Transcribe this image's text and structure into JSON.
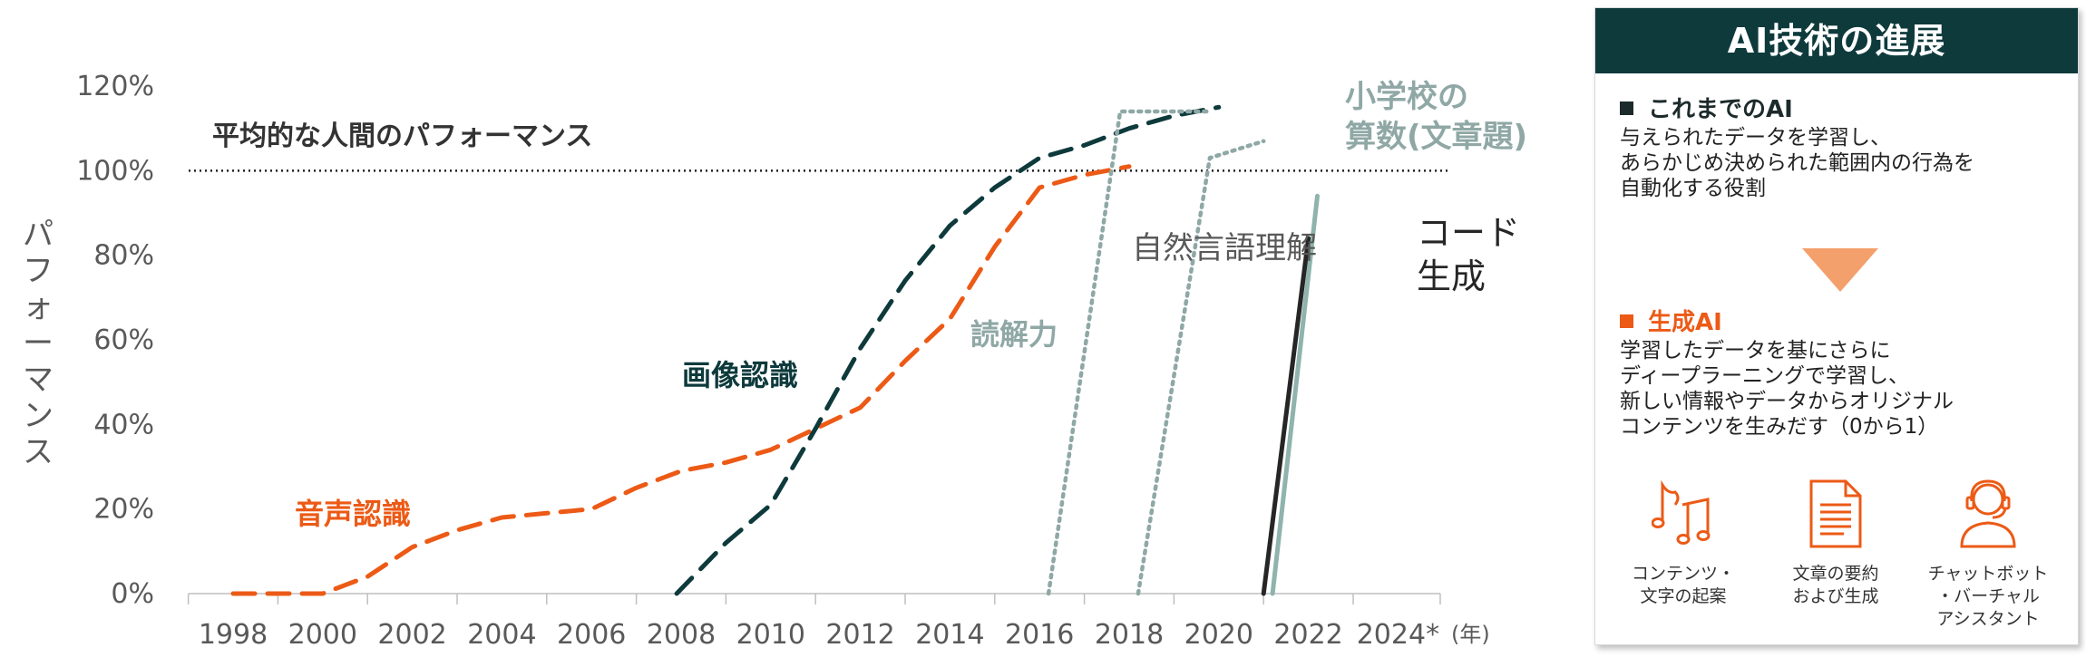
{
  "chart_data": {
    "type": "line",
    "x_axis_unit": "(年)",
    "y_axis_label": "パフォーマンス",
    "ylim": [
      0,
      120
    ],
    "xlim": [
      1997.5,
      2024
    ],
    "y_ticks": [
      {
        "value": 0,
        "label": "0%"
      },
      {
        "value": 20,
        "label": "20%"
      },
      {
        "value": 40,
        "label": "40%"
      },
      {
        "value": 60,
        "label": "60%"
      },
      {
        "value": 80,
        "label": "80%"
      },
      {
        "value": 100,
        "label": "100%"
      },
      {
        "value": 120,
        "label": "120%"
      }
    ],
    "x_ticks": [
      {
        "value": 1998,
        "label": "1998"
      },
      {
        "value": 2000,
        "label": "2000"
      },
      {
        "value": 2002,
        "label": "2002"
      },
      {
        "value": 2004,
        "label": "2004"
      },
      {
        "value": 2006,
        "label": "2006"
      },
      {
        "value": 2008,
        "label": "2008"
      },
      {
        "value": 2010,
        "label": "2010"
      },
      {
        "value": 2012,
        "label": "2012"
      },
      {
        "value": 2014,
        "label": "2014"
      },
      {
        "value": 2016,
        "label": "2016"
      },
      {
        "value": 2018,
        "label": "2018"
      },
      {
        "value": 2020,
        "label": "2020"
      },
      {
        "value": 2022,
        "label": "2022"
      },
      {
        "value": 2024,
        "label": "2024*"
      }
    ],
    "reference_line": {
      "value": 100,
      "label": "平均的な人間のパフォーマンス"
    },
    "series": [
      {
        "name": "音声認識",
        "color": "#ec5a16",
        "style": "dashed",
        "points": [
          [
            1998,
            0
          ],
          [
            2000,
            0
          ],
          [
            2001,
            4
          ],
          [
            2002,
            11
          ],
          [
            2003,
            15
          ],
          [
            2004,
            18
          ],
          [
            2005,
            19
          ],
          [
            2006,
            20
          ],
          [
            2007,
            25
          ],
          [
            2008,
            29
          ],
          [
            2009,
            31
          ],
          [
            2010,
            34
          ],
          [
            2011,
            39
          ],
          [
            2012,
            44
          ],
          [
            2013,
            55
          ],
          [
            2014,
            65
          ],
          [
            2015,
            82
          ],
          [
            2016,
            96
          ],
          [
            2017,
            99
          ],
          [
            2018,
            101
          ]
        ]
      },
      {
        "name": "画像認識",
        "color": "#0e3a3c",
        "style": "dashed",
        "points": [
          [
            2007.9,
            0
          ],
          [
            2009,
            12
          ],
          [
            2010,
            21
          ],
          [
            2011,
            39
          ],
          [
            2012,
            58
          ],
          [
            2013,
            74
          ],
          [
            2014,
            87
          ],
          [
            2015,
            96
          ],
          [
            2016,
            103
          ],
          [
            2017,
            106
          ],
          [
            2018,
            110
          ],
          [
            2019,
            113
          ],
          [
            2020,
            115
          ]
        ]
      },
      {
        "name": "読解力",
        "color": "#8fa8a5",
        "style": "dotted",
        "points": [
          [
            2016.2,
            0
          ],
          [
            2017.8,
            114
          ],
          [
            2019.8,
            114
          ]
        ]
      },
      {
        "name": "自然言語理解",
        "color": "#8fa8a5",
        "style": "dotted",
        "points": [
          [
            2018.2,
            0
          ],
          [
            2019.8,
            103
          ],
          [
            2021,
            107
          ]
        ]
      },
      {
        "name": "小学校の算数(文章題)",
        "color": "#8fb3ad",
        "style": "solid",
        "points": [
          [
            2021.2,
            0
          ],
          [
            2022.2,
            94
          ]
        ]
      },
      {
        "name": "コード生成",
        "color": "#262626",
        "style": "solid",
        "points": [
          [
            2021.0,
            0
          ],
          [
            2022.0,
            84
          ]
        ]
      }
    ],
    "series_labels": {
      "speech": "音声認識",
      "image": "画像認識",
      "reading": "読解力",
      "nlu": "自然言語理解",
      "math_line1": "小学校の",
      "math_line2": "算数(文章題)",
      "code_line1": "コード",
      "code_line2": "生成"
    }
  },
  "panel": {
    "title": "AI技術の進展",
    "section1": {
      "title": "これまでのAI",
      "lines": [
        "与えられたデータを学習し、",
        "あらかじめ決められた範囲内の行為を",
        "自動化する役割"
      ]
    },
    "section2": {
      "title": "生成AI",
      "lines": [
        "学習したデータを基にさらに",
        "ディープラーニングで学習し、",
        "新しい情報やデータからオリジナル",
        "コンテンツを生みだす（0から1）"
      ]
    },
    "features": [
      {
        "icon": "music-notes-icon",
        "label_lines": [
          "コンテンツ・",
          "文字の起案"
        ]
      },
      {
        "icon": "document-icon",
        "label_lines": [
          "文章の要約",
          "および生成"
        ]
      },
      {
        "icon": "headset-person-icon",
        "label_lines": [
          "チャットボット",
          "・バーチャル",
          "アシスタント"
        ]
      }
    ],
    "colors": {
      "header": "#0e3a3c",
      "accent": "#ec5a16",
      "arrow": "#f4a06c"
    }
  }
}
